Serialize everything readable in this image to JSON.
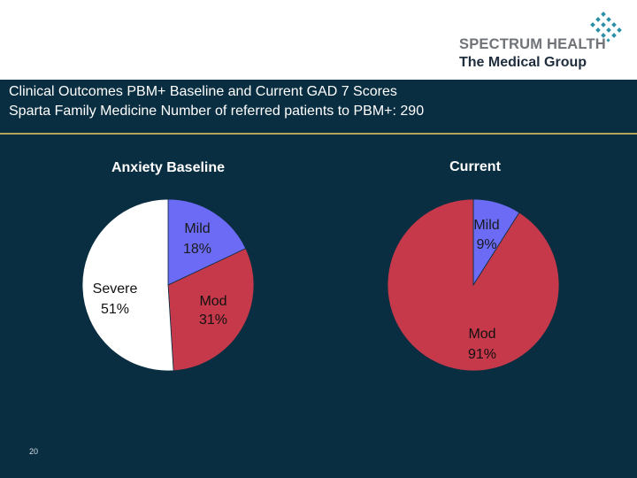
{
  "logo": {
    "line1": "SPECTRUM HEALTH",
    "line2": "The Medical Group"
  },
  "title": {
    "line1": "Clinical Outcomes PBM+ Baseline and Current GAD 7 Scores",
    "line2": "Sparta Family Medicine   Number of referred patients to PBM+: 290"
  },
  "page_number": "20",
  "colors": {
    "mild": "#6b6bf5",
    "mod": "#c5394a",
    "severe": "#ffffff",
    "background": "#0a2e41",
    "divider": "#b2a55a"
  },
  "chart_data": [
    {
      "type": "pie",
      "title": "Anxiety Baseline",
      "slices": [
        {
          "name": "Mild",
          "value": 18,
          "label": "18%"
        },
        {
          "name": "Mod",
          "value": 31,
          "label": "31%"
        },
        {
          "name": "Severe",
          "value": 51,
          "label": "51%"
        }
      ]
    },
    {
      "type": "pie",
      "title": "Current",
      "slices": [
        {
          "name": "Mild",
          "value": 9,
          "label": "9%"
        },
        {
          "name": "Mod",
          "value": 91,
          "label": "91%"
        }
      ]
    }
  ]
}
